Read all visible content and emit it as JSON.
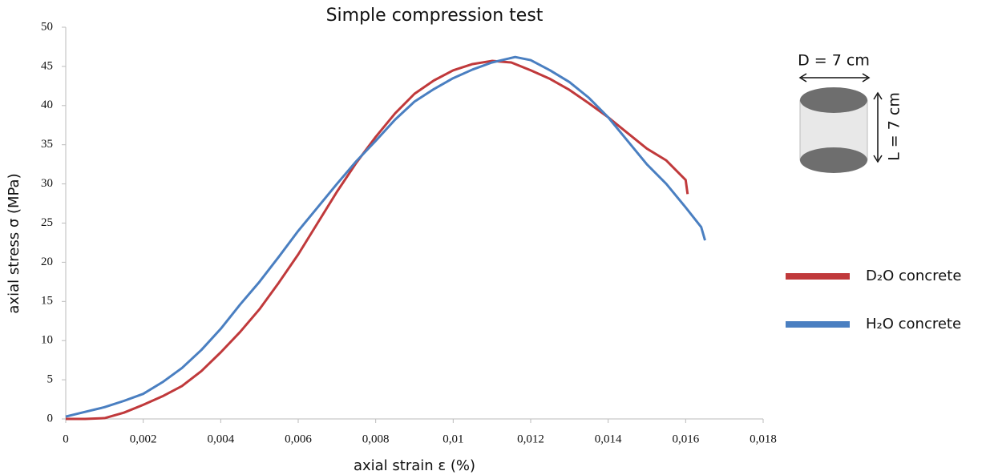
{
  "chart_data": {
    "type": "line",
    "title": "Simple compression test",
    "x_label": "axial strain ε (%)",
    "y_label": "axial stress σ (MPa)",
    "annotations": [
      "D = 7 cm",
      "L = 7 cm"
    ],
    "legend": "right",
    "grid": false,
    "xlim": [
      0,
      0.018
    ],
    "ylim": [
      0,
      50
    ],
    "xticks": [
      0,
      {
        "value": 0.002,
        "label": "0,002"
      },
      {
        "value": 0.004,
        "label": "0,004"
      },
      {
        "value": 0.006,
        "label": "0,006"
      },
      {
        "value": 0.008,
        "label": "0,008"
      },
      {
        "value": 0.01,
        "label": "0,01"
      },
      {
        "value": 0.012,
        "label": "0,012"
      },
      {
        "value": 0.014,
        "label": "0,014"
      },
      {
        "value": 0.016,
        "label": "0,016"
      },
      {
        "value": 0.018,
        "label": "0,018"
      }
    ],
    "yticks": [
      0,
      5,
      10,
      15,
      20,
      25,
      30,
      35,
      40,
      45,
      50
    ],
    "series": [
      {
        "name": "D₂O concrete",
        "color": "#c0393b",
        "x": [
          0,
          0.0005,
          0.001,
          0.0015,
          0.002,
          0.0025,
          0.003,
          0.0035,
          0.004,
          0.0045,
          0.005,
          0.0055,
          0.006,
          0.0065,
          0.007,
          0.0075,
          0.008,
          0.0085,
          0.009,
          0.0095,
          0.01,
          0.0105,
          0.011,
          0.0115,
          0.012,
          0.0125,
          0.013,
          0.0135,
          0.014,
          0.0145,
          0.015,
          0.0155,
          0.016,
          0.01605
        ],
        "values": [
          0,
          0,
          0.1,
          0.8,
          1.8,
          2.9,
          4.2,
          6.1,
          8.5,
          11.1,
          14,
          17.4,
          21,
          25,
          29,
          32.7,
          36,
          39,
          41.5,
          43.2,
          44.5,
          45.3,
          45.7,
          45.5,
          44.5,
          43.4,
          42,
          40.3,
          38.5,
          36.5,
          34.5,
          33,
          30.5,
          28.7
        ]
      },
      {
        "name": "H₂O concrete",
        "color": "#4a7fc1",
        "x": [
          0,
          0.0005,
          0.001,
          0.0015,
          0.002,
          0.0025,
          0.003,
          0.0035,
          0.004,
          0.0045,
          0.005,
          0.0055,
          0.006,
          0.0065,
          0.007,
          0.0075,
          0.008,
          0.0085,
          0.009,
          0.0095,
          0.01,
          0.0105,
          0.011,
          0.0116,
          0.012,
          0.0125,
          0.013,
          0.0135,
          0.014,
          0.0145,
          0.015,
          0.0155,
          0.016,
          0.0164,
          0.0165
        ],
        "values": [
          0.3,
          0.9,
          1.5,
          2.3,
          3.2,
          4.7,
          6.5,
          8.8,
          11.5,
          14.6,
          17.5,
          20.7,
          24,
          27,
          30,
          32.9,
          35.5,
          38.2,
          40.5,
          42.1,
          43.5,
          44.6,
          45.5,
          46.2,
          45.8,
          44.5,
          43,
          41,
          38.5,
          35.5,
          32.5,
          30,
          27,
          24.5,
          22.8
        ]
      }
    ]
  }
}
